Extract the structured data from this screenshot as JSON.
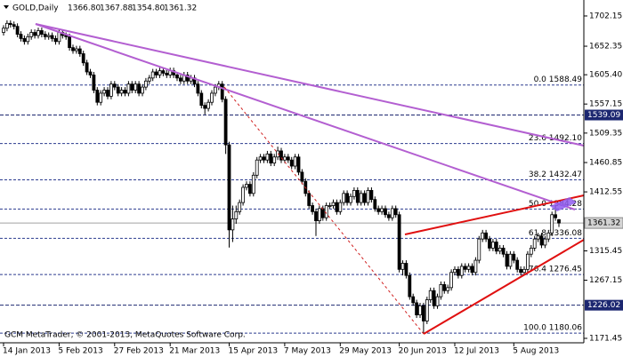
{
  "chart_data": {
    "type": "candlestick",
    "symbol": "GOLD,Daily",
    "last_bar_labels": [
      "1366.80",
      "1367.88",
      "1354.80",
      "1361.32"
    ],
    "copyright": "GCM MetaTrader, © 2001-2013, MetaQuotes Software Corp.",
    "categories": [
      "14 Jan 2013",
      null,
      null,
      null,
      null,
      null,
      null,
      null,
      null,
      null,
      null,
      null,
      null,
      null,
      null,
      null,
      "5 Feb 2013",
      null,
      null,
      null,
      null,
      null,
      null,
      null,
      null,
      null,
      null,
      null,
      null,
      null,
      null,
      null,
      "27 Feb 2013",
      null,
      null,
      null,
      null,
      null,
      null,
      null,
      null,
      null,
      null,
      null,
      null,
      null,
      null,
      null,
      "21 Mar 2013",
      null,
      null,
      null,
      null,
      null,
      null,
      null,
      null,
      null,
      null,
      null,
      null,
      null,
      null,
      null,
      null,
      "15 Apr 2013",
      null,
      null,
      null,
      null,
      null,
      null,
      null,
      null,
      null,
      null,
      null,
      null,
      null,
      null,
      null,
      "7 May 2013",
      null,
      null,
      null,
      null,
      null,
      null,
      null,
      null,
      null,
      null,
      null,
      null,
      null,
      null,
      null,
      "29 May 2013",
      null,
      null,
      null,
      null,
      null,
      null,
      null,
      null,
      null,
      null,
      null,
      null,
      null,
      null,
      null,
      null,
      "20 Jun 2013",
      null,
      null,
      null,
      null,
      null,
      null,
      null,
      null,
      null,
      null,
      null,
      null,
      null,
      null,
      null,
      "12 Jul 2013",
      null,
      null,
      null,
      null,
      null,
      null,
      null,
      null,
      null,
      null,
      null,
      null,
      null,
      null,
      null,
      null,
      "5 Aug 2013",
      null,
      null,
      null,
      null,
      null,
      null,
      null,
      null,
      null,
      null,
      null,
      null,
      null
    ],
    "open": [
      1675,
      1682,
      1690,
      1688,
      1685,
      1672,
      1665,
      1660,
      1668,
      1675,
      1670,
      1678,
      1672,
      1668,
      1670,
      1665,
      1660,
      1675,
      1670,
      1668,
      1650,
      1645,
      1648,
      1640,
      1625,
      1610,
      1605,
      1580,
      1560,
      1575,
      1580,
      1570,
      1590,
      1585,
      1575,
      1580,
      1575,
      1590,
      1580,
      1590,
      1575,
      1585,
      1595,
      1600,
      1610,
      1605,
      1612,
      1608,
      1605,
      1612,
      1605,
      1600,
      1595,
      1605,
      1595,
      1600,
      1590,
      1575,
      1555,
      1550,
      1560,
      1575,
      1585,
      1590,
      1565,
      1490,
      1350,
      1368,
      1380,
      1395,
      1420,
      1425,
      1410,
      1440,
      1465,
      1470,
      1465,
      1475,
      1460,
      1470,
      1480,
      1465,
      1470,
      1465,
      1455,
      1470,
      1445,
      1430,
      1410,
      1390,
      1380,
      1365,
      1385,
      1370,
      1390,
      1390,
      1395,
      1380,
      1395,
      1410,
      1395,
      1405,
      1415,
      1395,
      1410,
      1395,
      1415,
      1400,
      1385,
      1380,
      1385,
      1375,
      1370,
      1385,
      1375,
      1285,
      1295,
      1275,
      1240,
      1230,
      1210,
      1225,
      1200,
      1235,
      1250,
      1225,
      1240,
      1260,
      1250,
      1255,
      1280,
      1285,
      1275,
      1290,
      1285,
      1290,
      1280,
      1300,
      1335,
      1345,
      1335,
      1320,
      1330,
      1315,
      1320,
      1310,
      1290,
      1310,
      1300,
      1285,
      1280,
      1285,
      1310,
      1320,
      1335,
      1340,
      1325,
      1335,
      1345,
      1375,
      1366.8
    ],
    "high": [
      1687,
      1695,
      1695,
      1693,
      1690,
      1677,
      1670,
      1673,
      1680,
      1680,
      1683,
      1683,
      1677,
      1675,
      1675,
      1670,
      1680,
      1680,
      1675,
      1673,
      1655,
      1653,
      1653,
      1645,
      1630,
      1615,
      1610,
      1585,
      1580,
      1585,
      1585,
      1595,
      1595,
      1590,
      1585,
      1585,
      1595,
      1595,
      1595,
      1595,
      1590,
      1600,
      1605,
      1615,
      1615,
      1617,
      1617,
      1613,
      1617,
      1617,
      1610,
      1605,
      1610,
      1610,
      1605,
      1605,
      1595,
      1580,
      1560,
      1565,
      1580,
      1590,
      1595,
      1595,
      1570,
      1495,
      1390,
      1390,
      1400,
      1425,
      1430,
      1430,
      1445,
      1470,
      1475,
      1475,
      1480,
      1480,
      1475,
      1487,
      1485,
      1475,
      1475,
      1470,
      1475,
      1475,
      1450,
      1435,
      1415,
      1395,
      1385,
      1390,
      1390,
      1395,
      1395,
      1400,
      1400,
      1400,
      1415,
      1415,
      1410,
      1420,
      1420,
      1415,
      1415,
      1420,
      1420,
      1405,
      1390,
      1390,
      1390,
      1380,
      1390,
      1390,
      1380,
      1300,
      1300,
      1280,
      1245,
      1235,
      1230,
      1230,
      1240,
      1255,
      1255,
      1245,
      1265,
      1265,
      1260,
      1285,
      1290,
      1290,
      1295,
      1295,
      1295,
      1295,
      1305,
      1340,
      1350,
      1350,
      1340,
      1335,
      1335,
      1325,
      1325,
      1315,
      1315,
      1315,
      1305,
      1290,
      1290,
      1315,
      1325,
      1340,
      1345,
      1345,
      1340,
      1350,
      1380,
      1390,
      1367.88
    ],
    "low": [
      1670,
      1677,
      1683,
      1680,
      1667,
      1660,
      1655,
      1655,
      1663,
      1665,
      1665,
      1667,
      1663,
      1663,
      1660,
      1655,
      1655,
      1665,
      1663,
      1645,
      1640,
      1640,
      1635,
      1620,
      1605,
      1600,
      1575,
      1555,
      1555,
      1570,
      1565,
      1565,
      1580,
      1570,
      1570,
      1570,
      1570,
      1575,
      1575,
      1570,
      1570,
      1580,
      1590,
      1595,
      1600,
      1600,
      1603,
      1600,
      1600,
      1600,
      1595,
      1590,
      1590,
      1590,
      1590,
      1585,
      1570,
      1550,
      1540,
      1545,
      1555,
      1570,
      1580,
      1560,
      1475,
      1321,
      1330,
      1360,
      1375,
      1390,
      1415,
      1405,
      1405,
      1435,
      1460,
      1460,
      1460,
      1455,
      1455,
      1465,
      1460,
      1460,
      1460,
      1450,
      1450,
      1440,
      1425,
      1405,
      1385,
      1375,
      1340,
      1360,
      1365,
      1365,
      1385,
      1385,
      1375,
      1375,
      1390,
      1390,
      1390,
      1400,
      1390,
      1390,
      1390,
      1390,
      1395,
      1380,
      1375,
      1375,
      1370,
      1365,
      1365,
      1370,
      1280,
      1275,
      1270,
      1235,
      1225,
      1205,
      1205,
      1180,
      1195,
      1230,
      1220,
      1220,
      1235,
      1245,
      1245,
      1250,
      1275,
      1270,
      1270,
      1280,
      1280,
      1275,
      1275,
      1295,
      1330,
      1330,
      1315,
      1315,
      1310,
      1310,
      1305,
      1285,
      1285,
      1295,
      1280,
      1275,
      1275,
      1280,
      1305,
      1315,
      1330,
      1320,
      1320,
      1330,
      1340,
      1365,
      1354.8
    ],
    "close": [
      1682,
      1690,
      1688,
      1685,
      1672,
      1665,
      1660,
      1668,
      1675,
      1670,
      1678,
      1672,
      1668,
      1670,
      1665,
      1660,
      1675,
      1670,
      1668,
      1650,
      1645,
      1648,
      1640,
      1625,
      1610,
      1605,
      1580,
      1560,
      1575,
      1580,
      1570,
      1590,
      1585,
      1575,
      1580,
      1575,
      1590,
      1580,
      1590,
      1575,
      1585,
      1595,
      1600,
      1610,
      1605,
      1612,
      1608,
      1605,
      1612,
      1605,
      1600,
      1595,
      1605,
      1595,
      1600,
      1590,
      1575,
      1555,
      1550,
      1560,
      1575,
      1585,
      1590,
      1565,
      1490,
      1350,
      1368,
      1380,
      1395,
      1420,
      1425,
      1410,
      1440,
      1465,
      1470,
      1465,
      1475,
      1460,
      1470,
      1480,
      1465,
      1470,
      1465,
      1455,
      1470,
      1445,
      1430,
      1410,
      1390,
      1380,
      1365,
      1385,
      1370,
      1390,
      1390,
      1395,
      1380,
      1395,
      1410,
      1395,
      1405,
      1415,
      1395,
      1410,
      1395,
      1415,
      1400,
      1385,
      1380,
      1385,
      1375,
      1370,
      1385,
      1375,
      1285,
      1295,
      1275,
      1240,
      1230,
      1210,
      1225,
      1200,
      1235,
      1250,
      1225,
      1240,
      1260,
      1250,
      1255,
      1280,
      1285,
      1275,
      1290,
      1285,
      1290,
      1280,
      1300,
      1335,
      1345,
      1335,
      1320,
      1330,
      1315,
      1320,
      1310,
      1290,
      1310,
      1300,
      1285,
      1280,
      1285,
      1310,
      1320,
      1335,
      1340,
      1325,
      1335,
      1345,
      1375,
      1370,
      1361.32
    ],
    "up_color": "#ffffff",
    "down_color": "#000000",
    "ylim": [
      1165.6,
      1725.5
    ],
    "yticks": [
      1702.15,
      1652.35,
      {
        "value": 1605.4,
        "label": "1605.40"
      },
      1557.15,
      1509.35,
      1460.85,
      1412.55,
      1315.45,
      1267.15,
      1171.45
    ],
    "fib_color": "#2b3b8f",
    "fib_levels": [
      {
        "value": 1588.49,
        "label": "0.0 1588.49"
      },
      {
        "value": 1492.1,
        "label": "23.6 1492.10"
      },
      {
        "value": 1432.47,
        "label": "38.2 1432.47"
      },
      {
        "value": 1384.28,
        "label": "50.0 1384.28"
      },
      {
        "value": 1336.08,
        "label": "61.8 1336.08"
      },
      {
        "value": 1276.45,
        "label": "76.4 1276.45"
      },
      {
        "value": 1180.06,
        "label": "100.0 1180.06"
      }
    ],
    "level_color": "#1c2770",
    "levels": [
      1539.09,
      1226.02
    ]
  }
}
